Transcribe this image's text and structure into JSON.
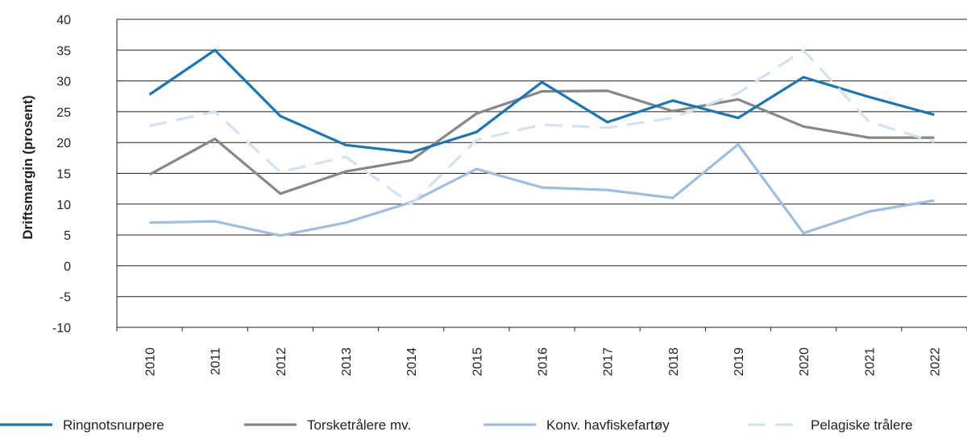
{
  "chart_data": {
    "type": "line",
    "title": "",
    "xlabel": "",
    "ylabel": "Driftsmargin (prosent)",
    "ylim": [
      -10,
      40
    ],
    "yticks": [
      40,
      35,
      30,
      25,
      20,
      15,
      10,
      5,
      0,
      -5,
      -10
    ],
    "ytick_labels": [
      "40",
      "35",
      "30",
      "25",
      "20",
      "15",
      "10",
      "5",
      "0",
      "-5",
      "-10"
    ],
    "grid": "horizontal",
    "legend_position": "bottom",
    "categories": [
      "2010",
      "2011",
      "2012",
      "2013",
      "2014",
      "2015",
      "2016",
      "2017",
      "2018",
      "2019",
      "2020",
      "2021",
      "2022"
    ],
    "series": [
      {
        "name": "Ringnotsnurpere",
        "color": "#1a75b3",
        "dash": "solid",
        "values": [
          27.8,
          35.0,
          24.3,
          19.6,
          18.4,
          21.7,
          29.8,
          23.3,
          26.8,
          24.0,
          30.6,
          27.4,
          24.5
        ]
      },
      {
        "name": "Torsketrålere mv.",
        "color": "#878787",
        "dash": "solid",
        "values": [
          14.8,
          20.6,
          11.7,
          15.3,
          17.1,
          24.7,
          28.3,
          28.4,
          25.1,
          27.0,
          22.6,
          20.8,
          20.8
        ]
      },
      {
        "name": "Konv. havfiskefartøy",
        "color": "#9dbde1",
        "dash": "solid",
        "values": [
          7.0,
          7.2,
          4.9,
          7.0,
          10.3,
          15.7,
          12.7,
          12.3,
          11.0,
          19.7,
          5.3,
          8.8,
          10.6
        ]
      },
      {
        "name": "Pelagiske trålere",
        "color": "#d3e1f1",
        "dash": "dashed",
        "values": [
          22.7,
          25.0,
          15.2,
          17.7,
          10.0,
          20.4,
          22.9,
          22.4,
          24.0,
          28.0,
          35.0,
          23.4,
          20.1
        ]
      }
    ]
  }
}
